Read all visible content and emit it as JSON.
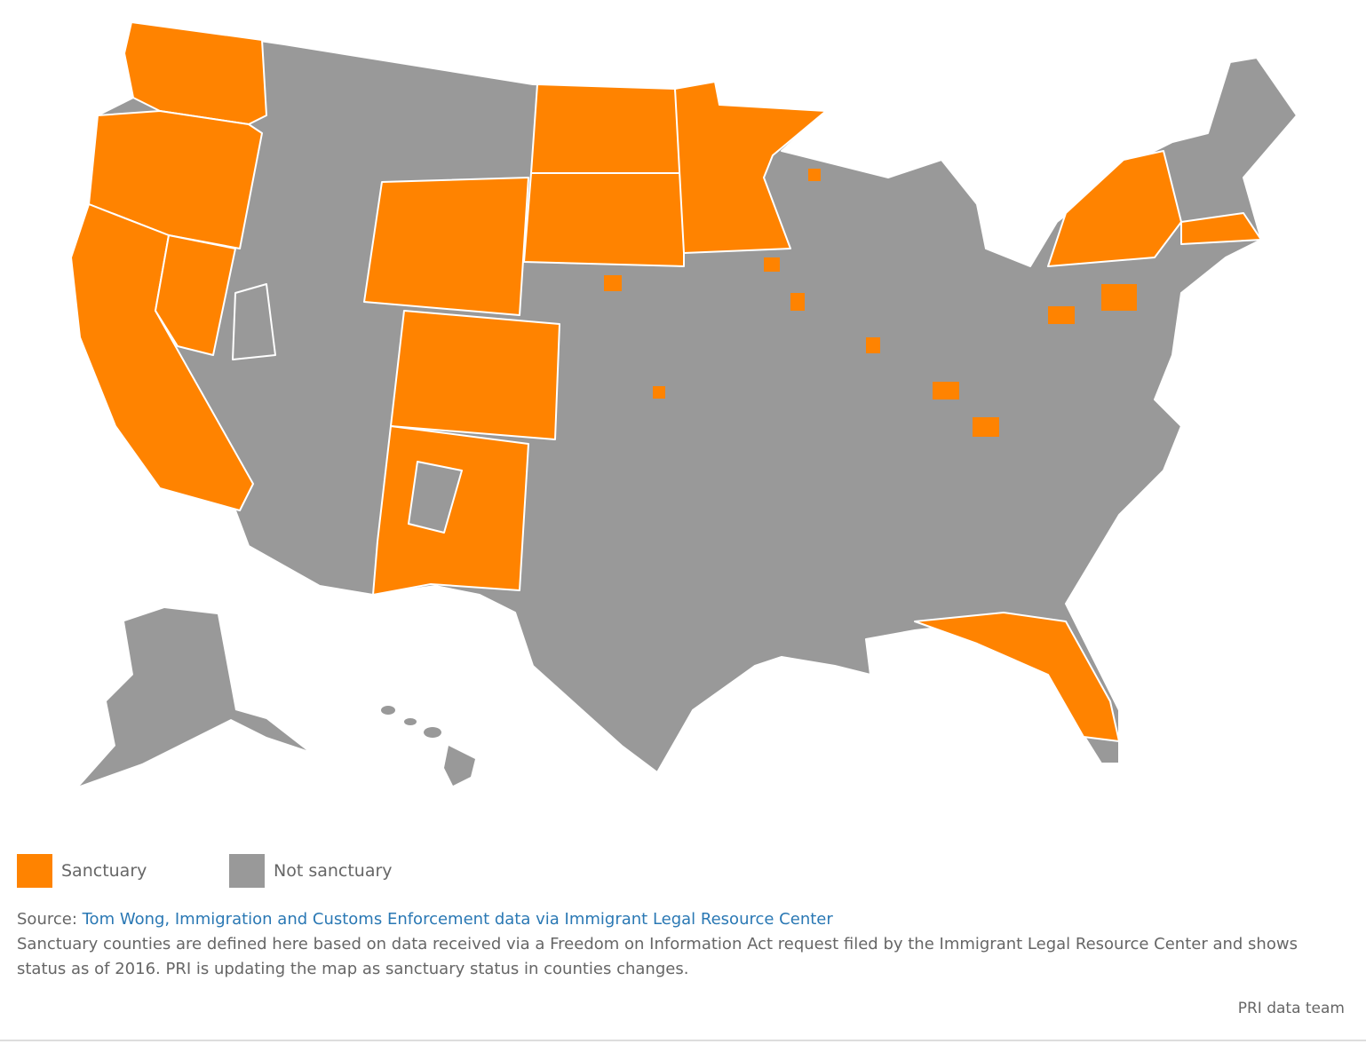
{
  "legend": {
    "items": [
      {
        "label": "Sanctuary",
        "color": "#ff8300"
      },
      {
        "label": "Not sanctuary",
        "color": "#999999"
      }
    ]
  },
  "source": {
    "prefix": "Source:",
    "link": "Tom Wong, Immigration and Customs Enforcement data via Immigrant Legal Resource Center"
  },
  "note": "Sanctuary counties are defined here based on data received via a Freedom on Information Act request filed by the Immigrant Legal Resource Center and shows status as of 2016. PRI is updating the map as sanctuary status in counties changes.",
  "credit": "PRI data team"
}
